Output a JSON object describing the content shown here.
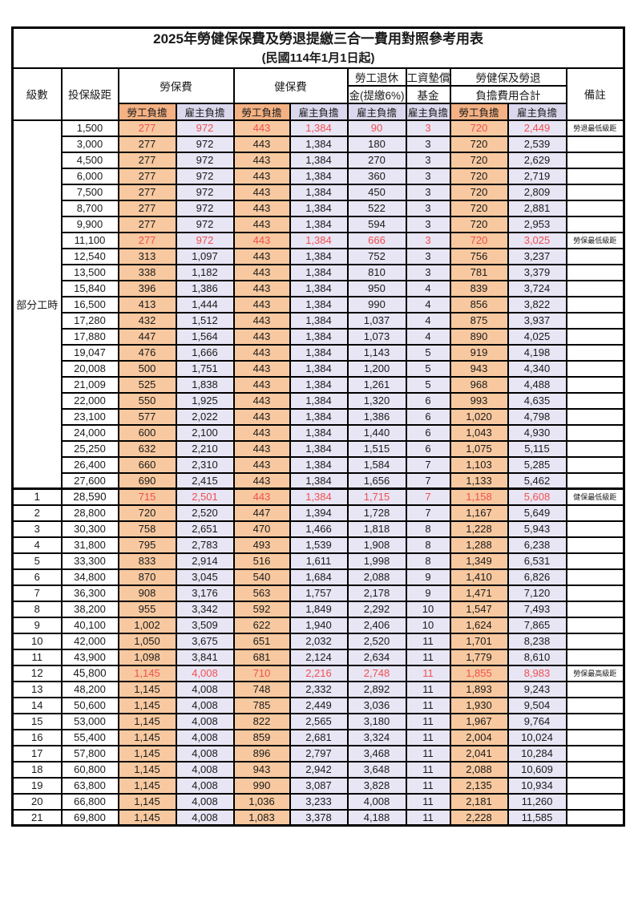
{
  "title": "2025年勞健保保費及勞退提繳三合一費用對照參考用表",
  "subtitle": "(民國114年1月1日起)",
  "header": {
    "level": "級數",
    "bracket": "投保級距",
    "labor_fee": "勞保費",
    "health_fee": "健保費",
    "pension_line1": "勞工退休",
    "pension_line2": "金(提繳6%)",
    "wage_fund_line1": "工資墊償",
    "wage_fund_line2": "基金",
    "total_line1": "勞健保及勞退",
    "total_line2": "負擔費用合計",
    "remark": "備註",
    "employee_share": "勞工負擔",
    "employer_share": "雇主負擔"
  },
  "group": {
    "label": "部分工時",
    "row_count": 23
  },
  "colors": {
    "header_emp": "#F4B183",
    "header_er": "#DBD7EC",
    "cell_emp": "#F8C9A0",
    "cell_er": "#E8E5F4",
    "highlight_red": "#F05050",
    "border": "#000000"
  },
  "rows": [
    {
      "level": "",
      "bracket": "1,500",
      "values": [
        "277",
        "972",
        "443",
        "1,384",
        "90",
        "3",
        "720",
        "2,449"
      ],
      "remark": "勞退最低級距",
      "red": true,
      "bold": false
    },
    {
      "level": "",
      "bracket": "3,000",
      "values": [
        "277",
        "972",
        "443",
        "1,384",
        "180",
        "3",
        "720",
        "2,539"
      ],
      "remark": "",
      "red": false,
      "bold": false
    },
    {
      "level": "",
      "bracket": "4,500",
      "values": [
        "277",
        "972",
        "443",
        "1,384",
        "270",
        "3",
        "720",
        "2,629"
      ],
      "remark": "",
      "red": false,
      "bold": false
    },
    {
      "level": "",
      "bracket": "6,000",
      "values": [
        "277",
        "972",
        "443",
        "1,384",
        "360",
        "3",
        "720",
        "2,719"
      ],
      "remark": "",
      "red": false,
      "bold": false
    },
    {
      "level": "",
      "bracket": "7,500",
      "values": [
        "277",
        "972",
        "443",
        "1,384",
        "450",
        "3",
        "720",
        "2,809"
      ],
      "remark": "",
      "red": false,
      "bold": false
    },
    {
      "level": "",
      "bracket": "8,700",
      "values": [
        "277",
        "972",
        "443",
        "1,384",
        "522",
        "3",
        "720",
        "2,881"
      ],
      "remark": "",
      "red": false,
      "bold": false
    },
    {
      "level": "",
      "bracket": "9,900",
      "values": [
        "277",
        "972",
        "443",
        "1,384",
        "594",
        "3",
        "720",
        "2,953"
      ],
      "remark": "",
      "red": false,
      "bold": false
    },
    {
      "level": "",
      "bracket": "11,100",
      "values": [
        "277",
        "972",
        "443",
        "1,384",
        "666",
        "3",
        "720",
        "3,025"
      ],
      "remark": "勞保最低級距",
      "red": true,
      "bold": false
    },
    {
      "level": "",
      "bracket": "12,540",
      "values": [
        "313",
        "1,097",
        "443",
        "1,384",
        "752",
        "3",
        "756",
        "3,237"
      ],
      "remark": "",
      "red": false,
      "bold": false
    },
    {
      "level": "",
      "bracket": "13,500",
      "values": [
        "338",
        "1,182",
        "443",
        "1,384",
        "810",
        "3",
        "781",
        "3,379"
      ],
      "remark": "",
      "red": false,
      "bold": false
    },
    {
      "level": "",
      "bracket": "15,840",
      "values": [
        "396",
        "1,386",
        "443",
        "1,384",
        "950",
        "4",
        "839",
        "3,724"
      ],
      "remark": "",
      "red": false,
      "bold": false
    },
    {
      "level": "",
      "bracket": "16,500",
      "values": [
        "413",
        "1,444",
        "443",
        "1,384",
        "990",
        "4",
        "856",
        "3,822"
      ],
      "remark": "",
      "red": false,
      "bold": false
    },
    {
      "level": "",
      "bracket": "17,280",
      "values": [
        "432",
        "1,512",
        "443",
        "1,384",
        "1,037",
        "4",
        "875",
        "3,937"
      ],
      "remark": "",
      "red": false,
      "bold": false
    },
    {
      "level": "",
      "bracket": "17,880",
      "values": [
        "447",
        "1,564",
        "443",
        "1,384",
        "1,073",
        "4",
        "890",
        "4,025"
      ],
      "remark": "",
      "red": false,
      "bold": false
    },
    {
      "level": "",
      "bracket": "19,047",
      "values": [
        "476",
        "1,666",
        "443",
        "1,384",
        "1,143",
        "5",
        "919",
        "4,198"
      ],
      "remark": "",
      "red": false,
      "bold": false
    },
    {
      "level": "",
      "bracket": "20,008",
      "values": [
        "500",
        "1,751",
        "443",
        "1,384",
        "1,200",
        "5",
        "943",
        "4,340"
      ],
      "remark": "",
      "red": false,
      "bold": false
    },
    {
      "level": "",
      "bracket": "21,009",
      "values": [
        "525",
        "1,838",
        "443",
        "1,384",
        "1,261",
        "5",
        "968",
        "4,488"
      ],
      "remark": "",
      "red": false,
      "bold": false
    },
    {
      "level": "",
      "bracket": "22,000",
      "values": [
        "550",
        "1,925",
        "443",
        "1,384",
        "1,320",
        "6",
        "993",
        "4,635"
      ],
      "remark": "",
      "red": false,
      "bold": false
    },
    {
      "level": "",
      "bracket": "23,100",
      "values": [
        "577",
        "2,022",
        "443",
        "1,384",
        "1,386",
        "6",
        "1,020",
        "4,798"
      ],
      "remark": "",
      "red": false,
      "bold": false
    },
    {
      "level": "",
      "bracket": "24,000",
      "values": [
        "600",
        "2,100",
        "443",
        "1,384",
        "1,440",
        "6",
        "1,043",
        "4,930"
      ],
      "remark": "",
      "red": false,
      "bold": false
    },
    {
      "level": "",
      "bracket": "25,250",
      "values": [
        "632",
        "2,210",
        "443",
        "1,384",
        "1,515",
        "6",
        "1,075",
        "5,115"
      ],
      "remark": "",
      "red": false,
      "bold": false
    },
    {
      "level": "",
      "bracket": "26,400",
      "values": [
        "660",
        "2,310",
        "443",
        "1,384",
        "1,584",
        "7",
        "1,103",
        "5,285"
      ],
      "remark": "",
      "red": false,
      "bold": false
    },
    {
      "level": "",
      "bracket": "27,600",
      "values": [
        "690",
        "2,415",
        "443",
        "1,384",
        "1,656",
        "7",
        "1,133",
        "5,462"
      ],
      "remark": "",
      "red": false,
      "bold": false
    },
    {
      "level": "1",
      "bracket": "28,590",
      "values": [
        "715",
        "2,501",
        "443",
        "1,384",
        "1,715",
        "7",
        "1,158",
        "5,608"
      ],
      "remark": "健保最低級距",
      "red": true,
      "bold": true
    },
    {
      "level": "2",
      "bracket": "28,800",
      "values": [
        "720",
        "2,520",
        "447",
        "1,394",
        "1,728",
        "7",
        "1,167",
        "5,649"
      ],
      "remark": "",
      "red": false,
      "bold": false
    },
    {
      "level": "3",
      "bracket": "30,300",
      "values": [
        "758",
        "2,651",
        "470",
        "1,466",
        "1,818",
        "8",
        "1,228",
        "5,943"
      ],
      "remark": "",
      "red": false,
      "bold": false
    },
    {
      "level": "4",
      "bracket": "31,800",
      "values": [
        "795",
        "2,783",
        "493",
        "1,539",
        "1,908",
        "8",
        "1,288",
        "6,238"
      ],
      "remark": "",
      "red": false,
      "bold": false
    },
    {
      "level": "5",
      "bracket": "33,300",
      "values": [
        "833",
        "2,914",
        "516",
        "1,611",
        "1,998",
        "8",
        "1,349",
        "6,531"
      ],
      "remark": "",
      "red": false,
      "bold": false
    },
    {
      "level": "6",
      "bracket": "34,800",
      "values": [
        "870",
        "3,045",
        "540",
        "1,684",
        "2,088",
        "9",
        "1,410",
        "6,826"
      ],
      "remark": "",
      "red": false,
      "bold": false
    },
    {
      "level": "7",
      "bracket": "36,300",
      "values": [
        "908",
        "3,176",
        "563",
        "1,757",
        "2,178",
        "9",
        "1,471",
        "7,120"
      ],
      "remark": "",
      "red": false,
      "bold": false
    },
    {
      "level": "8",
      "bracket": "38,200",
      "values": [
        "955",
        "3,342",
        "592",
        "1,849",
        "2,292",
        "10",
        "1,547",
        "7,493"
      ],
      "remark": "",
      "red": false,
      "bold": false
    },
    {
      "level": "9",
      "bracket": "40,100",
      "values": [
        "1,002",
        "3,509",
        "622",
        "1,940",
        "2,406",
        "10",
        "1,624",
        "7,865"
      ],
      "remark": "",
      "red": false,
      "bold": false
    },
    {
      "level": "10",
      "bracket": "42,000",
      "values": [
        "1,050",
        "3,675",
        "651",
        "2,032",
        "2,520",
        "11",
        "1,701",
        "8,238"
      ],
      "remark": "",
      "red": false,
      "bold": false
    },
    {
      "level": "11",
      "bracket": "43,900",
      "values": [
        "1,098",
        "3,841",
        "681",
        "2,124",
        "2,634",
        "11",
        "1,779",
        "8,610"
      ],
      "remark": "",
      "red": false,
      "bold": false
    },
    {
      "level": "12",
      "bracket": "45,800",
      "values": [
        "1,145",
        "4,008",
        "710",
        "2,216",
        "2,748",
        "11",
        "1,855",
        "8,983"
      ],
      "remark": "勞保最高級距",
      "red": true,
      "bold": true
    },
    {
      "level": "13",
      "bracket": "48,200",
      "values": [
        "1,145",
        "4,008",
        "748",
        "2,332",
        "2,892",
        "11",
        "1,893",
        "9,243"
      ],
      "remark": "",
      "red": false,
      "bold": false
    },
    {
      "level": "14",
      "bracket": "50,600",
      "values": [
        "1,145",
        "4,008",
        "785",
        "2,449",
        "3,036",
        "11",
        "1,930",
        "9,504"
      ],
      "remark": "",
      "red": false,
      "bold": false
    },
    {
      "level": "15",
      "bracket": "53,000",
      "values": [
        "1,145",
        "4,008",
        "822",
        "2,565",
        "3,180",
        "11",
        "1,967",
        "9,764"
      ],
      "remark": "",
      "red": false,
      "bold": false
    },
    {
      "level": "16",
      "bracket": "55,400",
      "values": [
        "1,145",
        "4,008",
        "859",
        "2,681",
        "3,324",
        "11",
        "2,004",
        "10,024"
      ],
      "remark": "",
      "red": false,
      "bold": false
    },
    {
      "level": "17",
      "bracket": "57,800",
      "values": [
        "1,145",
        "4,008",
        "896",
        "2,797",
        "3,468",
        "11",
        "2,041",
        "10,284"
      ],
      "remark": "",
      "red": false,
      "bold": false
    },
    {
      "level": "18",
      "bracket": "60,800",
      "values": [
        "1,145",
        "4,008",
        "943",
        "2,942",
        "3,648",
        "11",
        "2,088",
        "10,609"
      ],
      "remark": "",
      "red": false,
      "bold": false
    },
    {
      "level": "19",
      "bracket": "63,800",
      "values": [
        "1,145",
        "4,008",
        "990",
        "3,087",
        "3,828",
        "11",
        "2,135",
        "10,934"
      ],
      "remark": "",
      "red": false,
      "bold": false
    },
    {
      "level": "20",
      "bracket": "66,800",
      "values": [
        "1,145",
        "4,008",
        "1,036",
        "3,233",
        "4,008",
        "11",
        "2,181",
        "11,260"
      ],
      "remark": "",
      "red": false,
      "bold": false
    },
    {
      "level": "21",
      "bracket": "69,800",
      "values": [
        "1,145",
        "4,008",
        "1,083",
        "3,378",
        "4,188",
        "11",
        "2,228",
        "11,585"
      ],
      "remark": "",
      "red": false,
      "bold": false
    }
  ]
}
